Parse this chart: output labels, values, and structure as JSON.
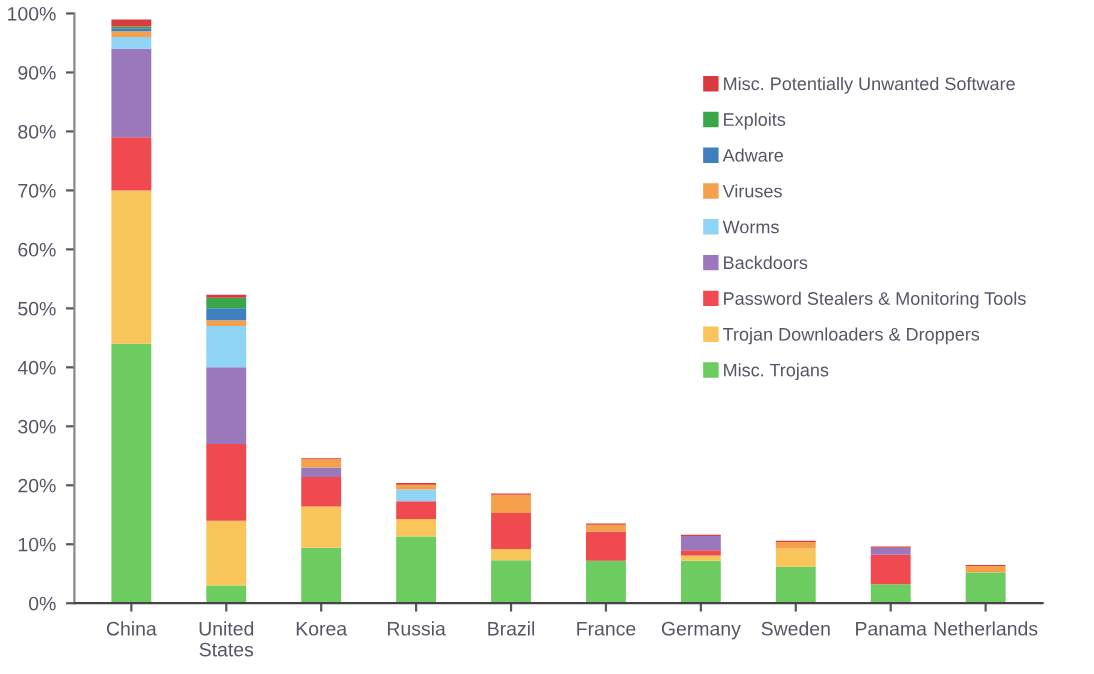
{
  "chart_data": {
    "type": "bar",
    "stacked": true,
    "categories": [
      "China",
      "United\nStates",
      "Korea",
      "Russia",
      "Brazil",
      "France",
      "Germany",
      "Sweden",
      "Panama",
      "Netherlands"
    ],
    "series": [
      {
        "name": "Misc. Trojans",
        "color": "#6dcc5f",
        "values": [
          44,
          3,
          9.4,
          11.3,
          7.3,
          7.2,
          7.2,
          6.2,
          3.2,
          5.2
        ]
      },
      {
        "name": "Trojan Downloaders & Droppers",
        "color": "#f9c45a",
        "values": [
          26,
          11,
          7,
          3,
          1.9,
          0,
          0.9,
          3.1,
          0,
          0
        ]
      },
      {
        "name": "Password Stealers & Monitoring Tools",
        "color": "#f04a50",
        "values": [
          9,
          13,
          5,
          3,
          6.1,
          4.9,
          0.9,
          0,
          5,
          0
        ]
      },
      {
        "name": "Backdoors",
        "color": "#9b78bc",
        "values": [
          15,
          13,
          1.6,
          0,
          0,
          0,
          2.4,
          0,
          1.2,
          0
        ]
      },
      {
        "name": "Worms",
        "color": "#8fd4f5",
        "values": [
          2,
          7,
          0,
          2,
          0,
          0,
          0,
          0,
          0,
          0
        ]
      },
      {
        "name": "Viruses",
        "color": "#f5a04c",
        "values": [
          1,
          1,
          1.4,
          0.8,
          3.1,
          1.2,
          0,
          1.1,
          0,
          1.1
        ]
      },
      {
        "name": "Adware",
        "color": "#3f7fbf",
        "values": [
          0.5,
          2,
          0,
          0,
          0,
          0,
          0,
          0,
          0,
          0
        ]
      },
      {
        "name": "Exploits",
        "color": "#3aa64a",
        "values": [
          0.3,
          1.8,
          0,
          0,
          0,
          0,
          0,
          0,
          0,
          0
        ]
      },
      {
        "name": "Misc. Potentially Unwanted Software",
        "color": "#d93a3f",
        "values": [
          1.2,
          0.5,
          0.2,
          0.3,
          0.2,
          0.2,
          0.2,
          0.2,
          0.2,
          0.2
        ]
      }
    ],
    "ylim": [
      0,
      100
    ],
    "yticks": [
      {
        "value": 0,
        "label": "0%"
      },
      {
        "value": 10,
        "label": "10%"
      },
      {
        "value": 20,
        "label": "20%"
      },
      {
        "value": 30,
        "label": "30%"
      },
      {
        "value": 40,
        "label": "40%"
      },
      {
        "value": 50,
        "label": "50%"
      },
      {
        "value": 60,
        "label": "60%"
      },
      {
        "value": 70,
        "label": "70%"
      },
      {
        "value": 80,
        "label": "80%"
      },
      {
        "value": 90,
        "label": "90%"
      },
      {
        "value": 100,
        "label": "100%"
      }
    ],
    "grid": false,
    "legend": "top right"
  }
}
